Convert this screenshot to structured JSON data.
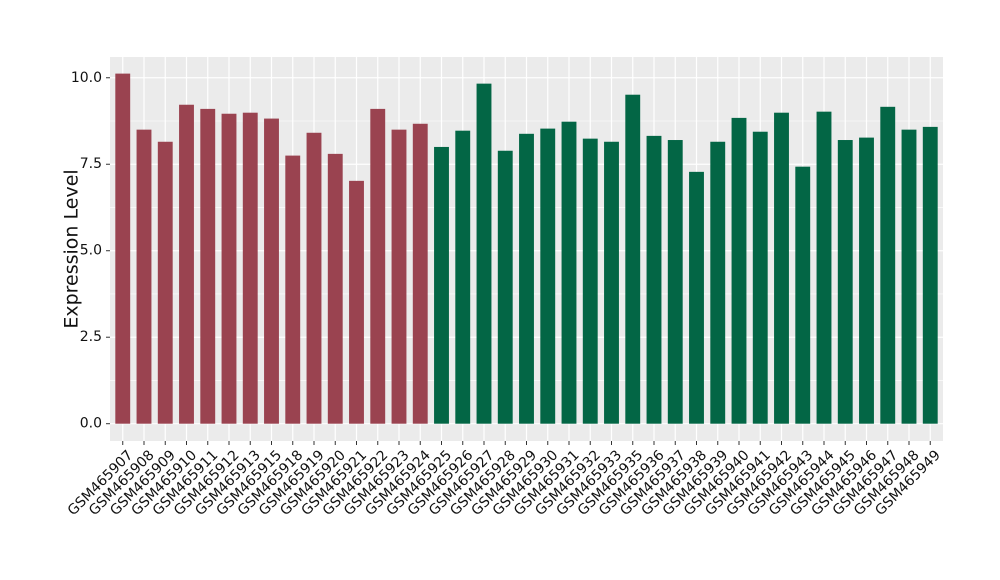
{
  "chart_data": {
    "type": "bar",
    "y_label": "Expression Level",
    "categories": [
      "GSM465907",
      "GSM465908",
      "GSM465909",
      "GSM465910",
      "GSM465911",
      "GSM465912",
      "GSM465913",
      "GSM465915",
      "GSM465918",
      "GSM465919",
      "GSM465920",
      "GSM465921",
      "GSM465922",
      "GSM465923",
      "GSM465924",
      "GSM465925",
      "GSM465926",
      "GSM465927",
      "GSM465928",
      "GSM465929",
      "GSM465930",
      "GSM465931",
      "GSM465932",
      "GSM465933",
      "GSM465935",
      "GSM465936",
      "GSM465937",
      "GSM465938",
      "GSM465939",
      "GSM465940",
      "GSM465941",
      "GSM465942",
      "GSM465943",
      "GSM465944",
      "GSM465945",
      "GSM465946",
      "GSM465947",
      "GSM465948",
      "GSM465949"
    ],
    "values": [
      10.12,
      8.5,
      8.15,
      9.22,
      9.1,
      8.96,
      8.99,
      8.82,
      7.75,
      8.41,
      7.8,
      7.02,
      9.1,
      8.5,
      8.67,
      8.0,
      8.47,
      9.83,
      7.89,
      8.38,
      8.53,
      8.73,
      8.24,
      8.15,
      9.51,
      8.32,
      8.2,
      7.28,
      8.15,
      8.84,
      8.44,
      8.99,
      7.43,
      9.02,
      8.2,
      8.27,
      9.16,
      8.5,
      8.58
    ],
    "colors": [
      "#9a4350",
      "#9a4350",
      "#9a4350",
      "#9a4350",
      "#9a4350",
      "#9a4350",
      "#9a4350",
      "#9a4350",
      "#9a4350",
      "#9a4350",
      "#9a4350",
      "#9a4350",
      "#9a4350",
      "#9a4350",
      "#9a4350",
      "#036645",
      "#036645",
      "#036645",
      "#036645",
      "#036645",
      "#036645",
      "#036645",
      "#036645",
      "#036645",
      "#036645",
      "#036645",
      "#036645",
      "#036645",
      "#036645",
      "#036645",
      "#036645",
      "#036645",
      "#036645",
      "#036645",
      "#036645",
      "#036645",
      "#036645",
      "#036645",
      "#036645"
    ],
    "ylim": [
      -0.5,
      10.6
    ],
    "yticks": [
      {
        "value": 0,
        "label": "0.0"
      },
      2.5,
      {
        "value": 5,
        "label": "5.0"
      },
      7.5,
      {
        "value": 10,
        "label": "10.0"
      }
    ],
    "grid": true
  }
}
